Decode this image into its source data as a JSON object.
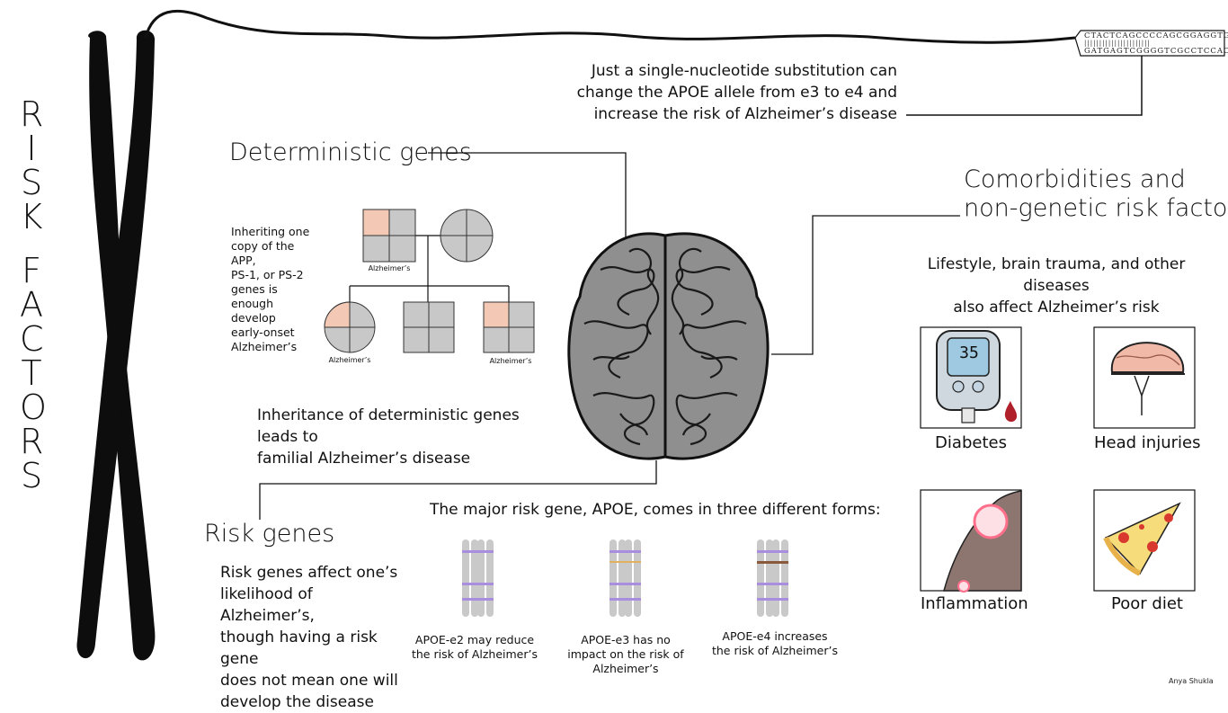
{
  "title": "RISK FACTORS",
  "title_letters_word1": [
    "R",
    "I",
    "S",
    "K"
  ],
  "title_letters_word2": [
    "F",
    "A",
    "C",
    "T",
    "O",
    "R",
    "S"
  ],
  "dna": {
    "top_strand": "CTACTCAGCCCCAGCGGAGGTG",
    "bonds": "||||||||||||||||||||||",
    "bottom_strand": "GATGAGTCGGGGTCGCCTCCAC"
  },
  "snp_note": {
    "line1": "Just a single-nucleotide substitution can",
    "line2": "change the APOE allele from e3 to e4 and",
    "line3": "increase the risk of Alzheimer’s disease"
  },
  "deterministic": {
    "heading": "Deterministic genes",
    "side_text": [
      "Inheriting one",
      "copy of the APP,",
      "PS-1, or PS-2",
      "genes is",
      "enough develop",
      "early-onset",
      "Alzheimer’s"
    ],
    "pedigree_label": "Alzheimer’s",
    "footer_line1": "Inheritance of deterministic genes leads to",
    "footer_line2": "familial Alzheimer’s disease"
  },
  "risk_genes": {
    "heading": "Risk genes",
    "description": [
      "Risk genes affect one’s",
      "likelihood of Alzheimer’s,",
      "though having a risk gene",
      "does not mean one will",
      "develop the disease"
    ],
    "apoe_intro": "The major risk gene, APOE, comes in three different forms:",
    "forms": [
      {
        "lines": [
          "APOE-e2 may reduce",
          "the risk of Alzheimer’s"
        ]
      },
      {
        "lines": [
          "APOE-e3 has no",
          "impact on the risk of",
          "Alzheimer’s"
        ]
      },
      {
        "lines": [
          "APOE-e4 increases",
          "the risk of Alzheimer’s"
        ]
      }
    ]
  },
  "comorbidities": {
    "heading_line1": "Comorbidities and",
    "heading_line2": "non-genetic risk factors",
    "subtext_line1": "Lifestyle, brain trauma, and other diseases",
    "subtext_line2": "also affect Alzheimer’s risk",
    "items": {
      "diabetes": "Diabetes",
      "head_injuries": "Head injuries",
      "inflammation": "Inflammation",
      "poor_diet": "Poor diet"
    },
    "glucose_reading": "35"
  },
  "credit": "Anya Shukla",
  "colors": {
    "affected": "#f3c9b5",
    "unaffected": "#c8c8c8",
    "chromosome": "#0d0d0d",
    "band_purple": "#a98ee0",
    "band_brown": "#8a5a3c",
    "blood": "#b0202a",
    "brain_fill": "#9e9e9e",
    "meter_screen": "#9ec9e0",
    "pizza_crust": "#e8b24a",
    "pepperoni": "#d8382e"
  }
}
